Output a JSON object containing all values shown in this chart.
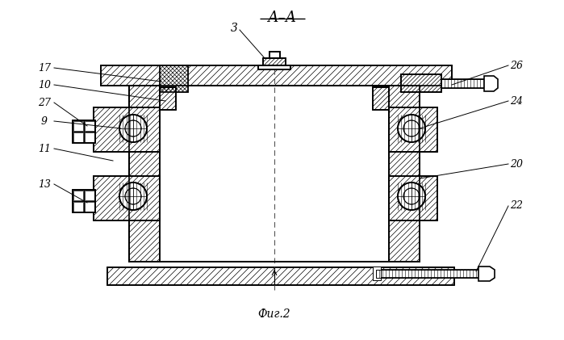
{
  "bg_color": "#ffffff",
  "line_color": "#000000",
  "title": "А–А",
  "caption": "Фиг.2",
  "lw_main": 1.2,
  "lw_thin": 0.5,
  "lw_med": 0.8
}
